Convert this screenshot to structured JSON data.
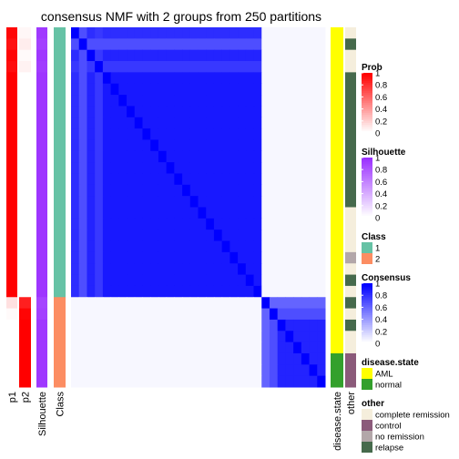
{
  "chart_data": {
    "type": "heatmap",
    "title": "consensus NMF with 2 groups from 250 partitions",
    "n_samples": 32,
    "group_sizes": {
      "class_1": 24,
      "class_2": 8
    },
    "left_annotations": [
      {
        "name": "p1",
        "label": "p1"
      },
      {
        "name": "p2",
        "label": "p2"
      },
      {
        "name": "silhouette",
        "label": "Silhouette"
      },
      {
        "name": "class",
        "label": "Class"
      }
    ],
    "right_annotations": [
      {
        "name": "disease-state",
        "label": "disease.state"
      },
      {
        "name": "other",
        "label": "other"
      }
    ],
    "p1": [
      0.97,
      0.93,
      0.98,
      0.95,
      1,
      1,
      1,
      1,
      1,
      1,
      1,
      1,
      1,
      1,
      1,
      1,
      1,
      1,
      1,
      1,
      1,
      1,
      1,
      1,
      0.12,
      0.02,
      0,
      0,
      0,
      0,
      0,
      0
    ],
    "p2": [
      0.03,
      0.07,
      0.02,
      0.05,
      0,
      0,
      0,
      0,
      0,
      0,
      0,
      0,
      0,
      0,
      0,
      0,
      0,
      0,
      0,
      0,
      0,
      0,
      0,
      0,
      0.88,
      0.98,
      1,
      1,
      1,
      1,
      1,
      1
    ],
    "silhouette": [
      0.95,
      0.92,
      0.96,
      0.94,
      0.97,
      0.97,
      0.97,
      0.97,
      0.97,
      0.97,
      0.97,
      0.97,
      0.97,
      0.97,
      0.97,
      0.97,
      0.97,
      0.97,
      0.97,
      0.97,
      0.97,
      0.97,
      0.97,
      0.97,
      0.9,
      0.92,
      0.96,
      0.96,
      0.96,
      0.96,
      0.96,
      0.96
    ],
    "class": [
      1,
      1,
      1,
      1,
      1,
      1,
      1,
      1,
      1,
      1,
      1,
      1,
      1,
      1,
      1,
      1,
      1,
      1,
      1,
      1,
      1,
      1,
      1,
      1,
      2,
      2,
      2,
      2,
      2,
      2,
      2,
      2
    ],
    "disease_state": [
      "AML",
      "AML",
      "AML",
      "AML",
      "AML",
      "AML",
      "AML",
      "AML",
      "AML",
      "AML",
      "AML",
      "AML",
      "AML",
      "AML",
      "AML",
      "AML",
      "AML",
      "AML",
      "AML",
      "AML",
      "AML",
      "AML",
      "AML",
      "AML",
      "AML",
      "AML",
      "AML",
      "AML",
      "AML",
      "normal",
      "normal",
      "normal"
    ],
    "other": [
      "complete remission",
      "relapse",
      "complete remission",
      "complete remission",
      "relapse",
      "relapse",
      "relapse",
      "relapse",
      "relapse",
      "relapse",
      "relapse",
      "relapse",
      "relapse",
      "relapse",
      "relapse",
      "relapse",
      "complete remission",
      "complete remission",
      "complete remission",
      "complete remission",
      "no remission",
      "complete remission",
      "relapse",
      "complete remission",
      "relapse",
      "complete remission",
      "relapse",
      "complete remission",
      "complete remission",
      "control",
      "control",
      "control"
    ],
    "consensus_rule": {
      "group_1_group_1": 0.95,
      "group_2_group_2": 0.95,
      "between_groups": 0.03,
      "diagonal": 1
    },
    "legends": [
      {
        "title": "Prob",
        "type": "continuous",
        "range": [
          0,
          1
        ],
        "ticks": [
          "1",
          "0.8",
          "0.6",
          "0.4",
          "0.2",
          "0"
        ],
        "colors": [
          "#ffffff",
          "#ff0000"
        ]
      },
      {
        "title": "Silhouette",
        "type": "continuous",
        "range": [
          0,
          1
        ],
        "ticks": [
          "1",
          "0.8",
          "0.6",
          "0.4",
          "0.2",
          "0"
        ],
        "colors": [
          "#ffffff",
          "#9b30ff"
        ]
      },
      {
        "title": "Class",
        "type": "discrete",
        "items": [
          {
            "label": "1",
            "color": "#66c2a5"
          },
          {
            "label": "2",
            "color": "#fc8d62"
          }
        ]
      },
      {
        "title": "Consensus",
        "type": "continuous",
        "range": [
          0,
          1
        ],
        "ticks": [
          "1",
          "0.8",
          "0.6",
          "0.4",
          "0.2",
          "0"
        ],
        "colors": [
          "#ffffff",
          "#0000ff"
        ]
      },
      {
        "title": "disease.state",
        "type": "discrete",
        "items": [
          {
            "label": "AML",
            "color": "#ffff00"
          },
          {
            "label": "normal",
            "color": "#33a02c"
          }
        ]
      },
      {
        "title": "other",
        "type": "discrete",
        "items": [
          {
            "label": "complete remission",
            "color": "#f5eedc"
          },
          {
            "label": "control",
            "color": "#8b5a7a"
          },
          {
            "label": "no remission",
            "color": "#b3a7a9"
          },
          {
            "label": "relapse",
            "color": "#466a4c"
          }
        ]
      }
    ]
  }
}
